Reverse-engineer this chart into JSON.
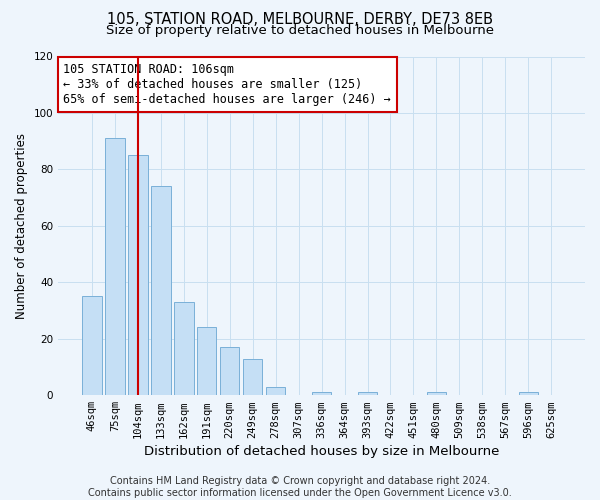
{
  "title": "105, STATION ROAD, MELBOURNE, DERBY, DE73 8EB",
  "subtitle": "Size of property relative to detached houses in Melbourne",
  "xlabel": "Distribution of detached houses by size in Melbourne",
  "ylabel": "Number of detached properties",
  "bar_labels": [
    "46sqm",
    "75sqm",
    "104sqm",
    "133sqm",
    "162sqm",
    "191sqm",
    "220sqm",
    "249sqm",
    "278sqm",
    "307sqm",
    "336sqm",
    "364sqm",
    "393sqm",
    "422sqm",
    "451sqm",
    "480sqm",
    "509sqm",
    "538sqm",
    "567sqm",
    "596sqm",
    "625sqm"
  ],
  "bar_values": [
    35,
    91,
    85,
    74,
    33,
    24,
    17,
    13,
    3,
    0,
    1,
    0,
    1,
    0,
    0,
    1,
    0,
    0,
    0,
    1,
    0
  ],
  "bar_color": "#c5dff5",
  "bar_edge_color": "#7ab0d8",
  "vline_x_index": 2,
  "vline_color": "#cc0000",
  "annotation_title": "105 STATION ROAD: 106sqm",
  "annotation_line1": "← 33% of detached houses are smaller (125)",
  "annotation_line2": "65% of semi-detached houses are larger (246) →",
  "annotation_box_color": "#ffffff",
  "annotation_box_edge_color": "#cc0000",
  "ylim": [
    0,
    120
  ],
  "yticks": [
    0,
    20,
    40,
    60,
    80,
    100,
    120
  ],
  "footer_line1": "Contains HM Land Registry data © Crown copyright and database right 2024.",
  "footer_line2": "Contains public sector information licensed under the Open Government Licence v3.0.",
  "title_fontsize": 10.5,
  "subtitle_fontsize": 9.5,
  "xlabel_fontsize": 9.5,
  "ylabel_fontsize": 8.5,
  "tick_fontsize": 7.5,
  "annotation_fontsize": 8.5,
  "footer_fontsize": 7,
  "grid_color": "#c8dff0",
  "background_color": "#eef5fc"
}
